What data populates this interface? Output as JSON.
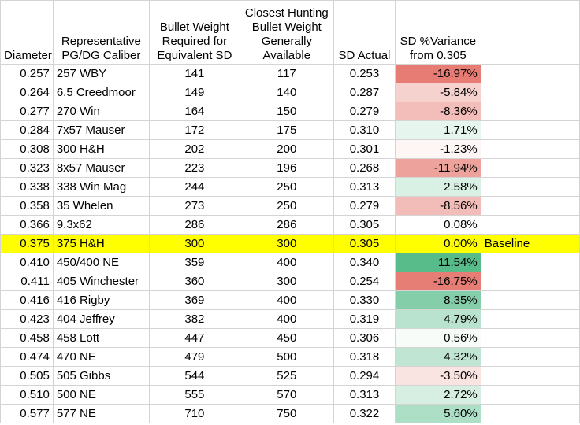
{
  "headers": [
    "Diameter",
    "Representative PG/DG Caliber",
    "Bullet Weight Required for Equivalent SD",
    "Closest Hunting Bullet Weight Generally Available",
    "SD Actual",
    "SD %Variance from 0.305",
    ""
  ],
  "rows": [
    {
      "diameter": "0.257",
      "caliber": "257 WBY",
      "req_weight": "141",
      "avail_weight": "117",
      "sd": "0.253",
      "variance": "-16.97%",
      "variance_value": -16.97,
      "note": ""
    },
    {
      "diameter": "0.264",
      "caliber": "6.5 Creedmoor",
      "req_weight": "149",
      "avail_weight": "140",
      "sd": "0.287",
      "variance": "-5.84%",
      "variance_value": -5.84,
      "note": ""
    },
    {
      "diameter": "0.277",
      "caliber": "270 Win",
      "req_weight": "164",
      "avail_weight": "150",
      "sd": "0.279",
      "variance": "-8.36%",
      "variance_value": -8.36,
      "note": ""
    },
    {
      "diameter": "0.284",
      "caliber": "7x57 Mauser",
      "req_weight": "172",
      "avail_weight": "175",
      "sd": "0.310",
      "variance": "1.71%",
      "variance_value": 1.71,
      "note": ""
    },
    {
      "diameter": "0.308",
      "caliber": "300 H&H",
      "req_weight": "202",
      "avail_weight": "200",
      "sd": "0.301",
      "variance": "-1.23%",
      "variance_value": -1.23,
      "note": ""
    },
    {
      "diameter": "0.323",
      "caliber": "8x57 Mauser",
      "req_weight": "223",
      "avail_weight": "196",
      "sd": "0.268",
      "variance": "-11.94%",
      "variance_value": -11.94,
      "note": ""
    },
    {
      "diameter": "0.338",
      "caliber": "338 Win Mag",
      "req_weight": "244",
      "avail_weight": "250",
      "sd": "0.313",
      "variance": "2.58%",
      "variance_value": 2.58,
      "note": ""
    },
    {
      "diameter": "0.358",
      "caliber": "35 Whelen",
      "req_weight": "273",
      "avail_weight": "250",
      "sd": "0.279",
      "variance": "-8.56%",
      "variance_value": -8.56,
      "note": ""
    },
    {
      "diameter": "0.366",
      "caliber": "9.3x62",
      "req_weight": "286",
      "avail_weight": "286",
      "sd": "0.305",
      "variance": "0.08%",
      "variance_value": 0.08,
      "note": ""
    },
    {
      "diameter": "0.375",
      "caliber": "375 H&H",
      "req_weight": "300",
      "avail_weight": "300",
      "sd": "0.305",
      "variance": "0.00%",
      "variance_value": 0.0,
      "note": "Baseline",
      "highlight": true
    },
    {
      "diameter": "0.410",
      "caliber": "450/400 NE",
      "req_weight": "359",
      "avail_weight": "400",
      "sd": "0.340",
      "variance": "11.54%",
      "variance_value": 11.54,
      "note": ""
    },
    {
      "diameter": "0.411",
      "caliber": "405 Winchester",
      "req_weight": "360",
      "avail_weight": "300",
      "sd": "0.254",
      "variance": "-16.75%",
      "variance_value": -16.75,
      "note": ""
    },
    {
      "diameter": "0.416",
      "caliber": "416 Rigby",
      "req_weight": "369",
      "avail_weight": "400",
      "sd": "0.330",
      "variance": "8.35%",
      "variance_value": 8.35,
      "note": ""
    },
    {
      "diameter": "0.423",
      "caliber": "404 Jeffrey",
      "req_weight": "382",
      "avail_weight": "400",
      "sd": "0.319",
      "variance": "4.79%",
      "variance_value": 4.79,
      "note": ""
    },
    {
      "diameter": "0.458",
      "caliber": "458 Lott",
      "req_weight": "447",
      "avail_weight": "450",
      "sd": "0.306",
      "variance": "0.56%",
      "variance_value": 0.56,
      "note": ""
    },
    {
      "diameter": "0.474",
      "caliber": "470 NE",
      "req_weight": "479",
      "avail_weight": "500",
      "sd": "0.318",
      "variance": "4.32%",
      "variance_value": 4.32,
      "note": ""
    },
    {
      "diameter": "0.505",
      "caliber": "505 Gibbs",
      "req_weight": "544",
      "avail_weight": "525",
      "sd": "0.294",
      "variance": "-3.50%",
      "variance_value": -3.5,
      "note": ""
    },
    {
      "diameter": "0.510",
      "caliber": "500 NE",
      "req_weight": "555",
      "avail_weight": "570",
      "sd": "0.313",
      "variance": "2.72%",
      "variance_value": 2.72,
      "note": ""
    },
    {
      "diameter": "0.577",
      "caliber": "577 NE",
      "req_weight": "710",
      "avail_weight": "750",
      "sd": "0.322",
      "variance": "5.60%",
      "variance_value": 5.6,
      "note": ""
    }
  ],
  "colors": {
    "highlight": "#ffff00",
    "negative_max": "#e67c73",
    "positive_max": "#57bb8a",
    "neutral": "#ffffff",
    "gridline": "#d4d4d4"
  }
}
